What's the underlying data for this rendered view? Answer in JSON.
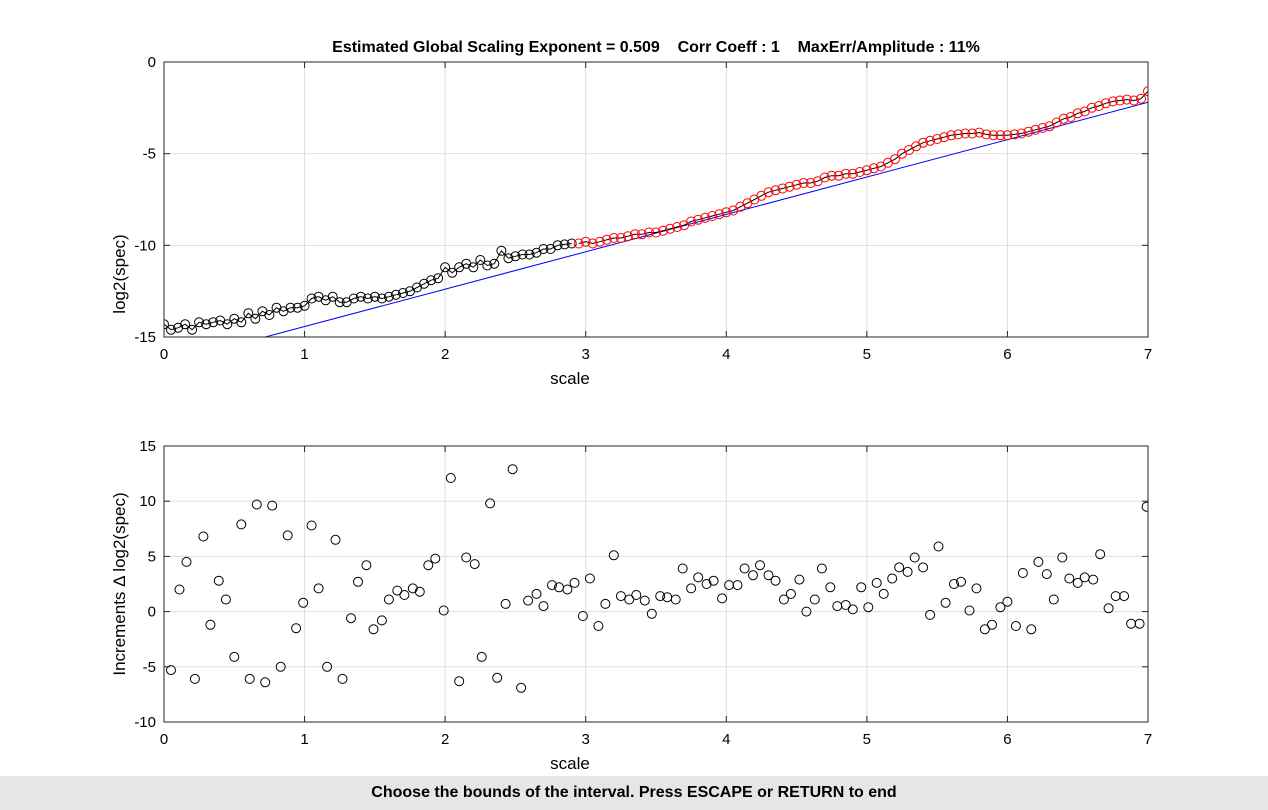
{
  "status": {
    "instruction": "Choose the bounds of the interval. Press ESCAPE or RETURN to end"
  },
  "colors": {
    "fit_line": "#0000ff",
    "selected_points": "#ff0000",
    "other_points": "#000000"
  },
  "chart_data": [
    {
      "type": "scatter",
      "title": "Estimated Global Scaling Exponent = 0.509    Corr Coeff : 1    MaxErr/Amplitude : 11%",
      "xlabel": "scale",
      "ylabel": "log2(spec)",
      "xlim": [
        0,
        7
      ],
      "ylim": [
        -15,
        0
      ],
      "xticks": [
        "0",
        "1",
        "2",
        "3",
        "4",
        "5",
        "6",
        "7"
      ],
      "yticks": [
        "0",
        "-5",
        "-10",
        "-15"
      ],
      "grid": true,
      "series": [
        {
          "marker": "circle",
          "style": "line+markers",
          "color": "#000000",
          "x": [
            0.0,
            0.05,
            0.1,
            0.15,
            0.2,
            0.25,
            0.3,
            0.35,
            0.4,
            0.45,
            0.5,
            0.55,
            0.6,
            0.65,
            0.7,
            0.75,
            0.8,
            0.85,
            0.9,
            0.95,
            1.0,
            1.05,
            1.1,
            1.15,
            1.2,
            1.25,
            1.3,
            1.35,
            1.4,
            1.45,
            1.5,
            1.55,
            1.6,
            1.65,
            1.7,
            1.75,
            1.8,
            1.85,
            1.9,
            1.95,
            2.0,
            2.05,
            2.1,
            2.15,
            2.2,
            2.25,
            2.3,
            2.35,
            2.4,
            2.45,
            2.5,
            2.55,
            2.6,
            2.65,
            2.7,
            2.75,
            2.8,
            2.85,
            2.9
          ],
          "y": [
            -14.3,
            -14.6,
            -14.5,
            -14.3,
            -14.6,
            -14.2,
            -14.3,
            -14.2,
            -14.1,
            -14.3,
            -14.0,
            -14.2,
            -13.7,
            -14.0,
            -13.6,
            -13.8,
            -13.4,
            -13.6,
            -13.4,
            -13.4,
            -13.3,
            -12.9,
            -12.8,
            -13.0,
            -12.8,
            -13.1,
            -13.1,
            -12.9,
            -12.8,
            -12.9,
            -12.8,
            -12.9,
            -12.8,
            -12.7,
            -12.6,
            -12.5,
            -12.3,
            -12.1,
            -11.9,
            -11.8,
            -11.2,
            -11.5,
            -11.2,
            -11.0,
            -11.2,
            -10.8,
            -11.1,
            -11.0,
            -10.3,
            -10.7,
            -10.6,
            -10.5,
            -10.5,
            -10.4,
            -10.2,
            -10.2,
            -10.0,
            -9.95,
            -9.9
          ]
        },
        {
          "marker": "circle",
          "style": "line+markers",
          "color": "#ff0000",
          "x": [
            2.95,
            3.0,
            3.05,
            3.1,
            3.15,
            3.2,
            3.25,
            3.3,
            3.35,
            3.4,
            3.45,
            3.5,
            3.55,
            3.6,
            3.65,
            3.7,
            3.75,
            3.8,
            3.85,
            3.9,
            3.95,
            4.0,
            4.05,
            4.1,
            4.15,
            4.2,
            4.25,
            4.3,
            4.35,
            4.4,
            4.45,
            4.5,
            4.55,
            4.6,
            4.65,
            4.7,
            4.75,
            4.8,
            4.85,
            4.9,
            4.95,
            5.0,
            5.05,
            5.1,
            5.15,
            5.2,
            5.25,
            5.3,
            5.35,
            5.4,
            5.45,
            5.5,
            5.55,
            5.6,
            5.65,
            5.7,
            5.75,
            5.8,
            5.85,
            5.9,
            5.95,
            6.0,
            6.05,
            6.1,
            6.15,
            6.2,
            6.25,
            6.3,
            6.35,
            6.4,
            6.45,
            6.5,
            6.55,
            6.6,
            6.65,
            6.7,
            6.75,
            6.8,
            6.85,
            6.9,
            6.95,
            7.0
          ],
          "y": [
            -9.9,
            -9.8,
            -9.9,
            -9.8,
            -9.7,
            -9.6,
            -9.6,
            -9.5,
            -9.4,
            -9.4,
            -9.3,
            -9.3,
            -9.2,
            -9.1,
            -9.0,
            -8.9,
            -8.7,
            -8.6,
            -8.5,
            -8.4,
            -8.3,
            -8.2,
            -8.1,
            -7.9,
            -7.7,
            -7.5,
            -7.3,
            -7.1,
            -7.0,
            -6.9,
            -6.8,
            -6.7,
            -6.6,
            -6.6,
            -6.5,
            -6.3,
            -6.2,
            -6.2,
            -6.1,
            -6.1,
            -6.0,
            -5.9,
            -5.8,
            -5.7,
            -5.5,
            -5.3,
            -5.0,
            -4.8,
            -4.6,
            -4.4,
            -4.3,
            -4.2,
            -4.1,
            -4.0,
            -3.95,
            -3.9,
            -3.9,
            -3.85,
            -3.95,
            -4.0,
            -4.0,
            -4.0,
            -3.95,
            -3.9,
            -3.8,
            -3.7,
            -3.6,
            -3.5,
            -3.3,
            -3.1,
            -3.0,
            -2.8,
            -2.7,
            -2.5,
            -2.4,
            -2.25,
            -2.15,
            -2.1,
            -2.05,
            -2.1,
            -2.0,
            -1.6
          ]
        },
        {
          "style": "line",
          "color": "#0000ff",
          "x": [
            0.72,
            7.0
          ],
          "y": [
            -15.0,
            -2.2
          ]
        }
      ]
    },
    {
      "type": "scatter",
      "title": "",
      "xlabel": "scale",
      "ylabel": "Increments Δ log2(spec)",
      "xlim": [
        0,
        7
      ],
      "ylim": [
        -10,
        15
      ],
      "xticks": [
        "0",
        "1",
        "2",
        "3",
        "4",
        "5",
        "6",
        "7"
      ],
      "yticks": [
        "15",
        "10",
        "5",
        "0",
        "-5",
        "-10"
      ],
      "grid": true,
      "series": [
        {
          "marker": "circle",
          "style": "markers",
          "color": "#000000",
          "x": [
            0.05,
            0.11,
            0.16,
            0.22,
            0.28,
            0.33,
            0.39,
            0.44,
            0.5,
            0.55,
            0.61,
            0.66,
            0.72,
            0.77,
            0.83,
            0.88,
            0.94,
            0.99,
            1.05,
            1.1,
            1.16,
            1.22,
            1.27,
            1.33,
            1.38,
            1.44,
            1.49,
            1.55,
            1.6,
            1.66,
            1.71,
            1.77,
            1.82,
            1.88,
            1.93,
            1.99,
            2.04,
            2.1,
            2.15,
            2.21,
            2.26,
            2.32,
            2.37,
            2.43,
            2.48,
            2.54,
            2.59,
            2.65,
            2.7,
            2.76,
            2.81,
            2.87,
            2.92,
            2.98,
            3.03,
            3.09,
            3.14,
            3.2,
            3.25,
            3.31,
            3.36,
            3.42,
            3.47,
            3.53,
            3.58,
            3.64,
            3.69,
            3.75,
            3.8,
            3.86,
            3.91,
            3.97,
            4.02,
            4.08,
            4.13,
            4.19,
            4.24,
            4.3,
            4.35,
            4.41,
            4.46,
            4.52,
            4.57,
            4.63,
            4.68,
            4.74,
            4.79,
            4.85,
            4.9,
            4.96,
            5.01,
            5.07,
            5.12,
            5.18,
            5.23,
            5.29,
            5.34,
            5.4,
            5.45,
            5.51,
            5.56,
            5.62,
            5.67,
            5.73,
            5.78,
            5.84,
            5.89,
            5.95,
            6.0,
            6.06,
            6.11,
            6.17,
            6.22,
            6.28,
            6.33,
            6.39,
            6.44,
            6.5,
            6.55,
            6.61,
            6.66,
            6.72,
            6.77,
            6.83,
            6.88,
            6.94,
            6.99
          ],
          "y": [
            -5.3,
            2.0,
            4.5,
            -6.1,
            6.8,
            -1.2,
            2.8,
            1.1,
            -4.1,
            7.9,
            -6.1,
            9.7,
            -6.4,
            9.6,
            -5.0,
            6.9,
            -1.5,
            0.8,
            7.8,
            2.1,
            -5.0,
            6.5,
            -6.1,
            -0.6,
            2.7,
            4.2,
            -1.6,
            -0.8,
            1.1,
            1.9,
            1.5,
            2.1,
            1.8,
            4.2,
            4.8,
            0.1,
            12.1,
            -6.3,
            4.9,
            4.3,
            -4.1,
            9.8,
            -6.0,
            0.7,
            12.9,
            -6.9,
            1.0,
            1.6,
            0.5,
            2.4,
            2.2,
            2.0,
            2.6,
            -0.4,
            3.0,
            -1.3,
            0.7,
            5.1,
            1.4,
            1.1,
            1.5,
            1.0,
            -0.2,
            1.4,
            1.3,
            1.1,
            3.9,
            2.1,
            3.1,
            2.5,
            2.8,
            1.2,
            2.4,
            2.4,
            3.9,
            3.3,
            4.2,
            3.3,
            2.8,
            1.1,
            1.6,
            2.9,
            0.0,
            1.1,
            3.9,
            2.2,
            0.5,
            0.6,
            0.2,
            2.2,
            0.4,
            2.6,
            1.6,
            3.0,
            4.0,
            3.6,
            4.9,
            4.0,
            -0.3,
            5.9,
            0.8,
            2.5,
            2.7,
            0.1,
            2.1,
            -1.6,
            -1.2,
            0.4,
            0.9,
            -1.3,
            3.5,
            -1.6,
            4.5,
            3.4,
            1.1,
            4.9,
            3.0,
            2.6,
            3.1,
            2.9,
            5.2,
            0.3,
            1.4,
            1.4,
            -1.1,
            -1.1,
            9.5
          ]
        }
      ]
    }
  ]
}
